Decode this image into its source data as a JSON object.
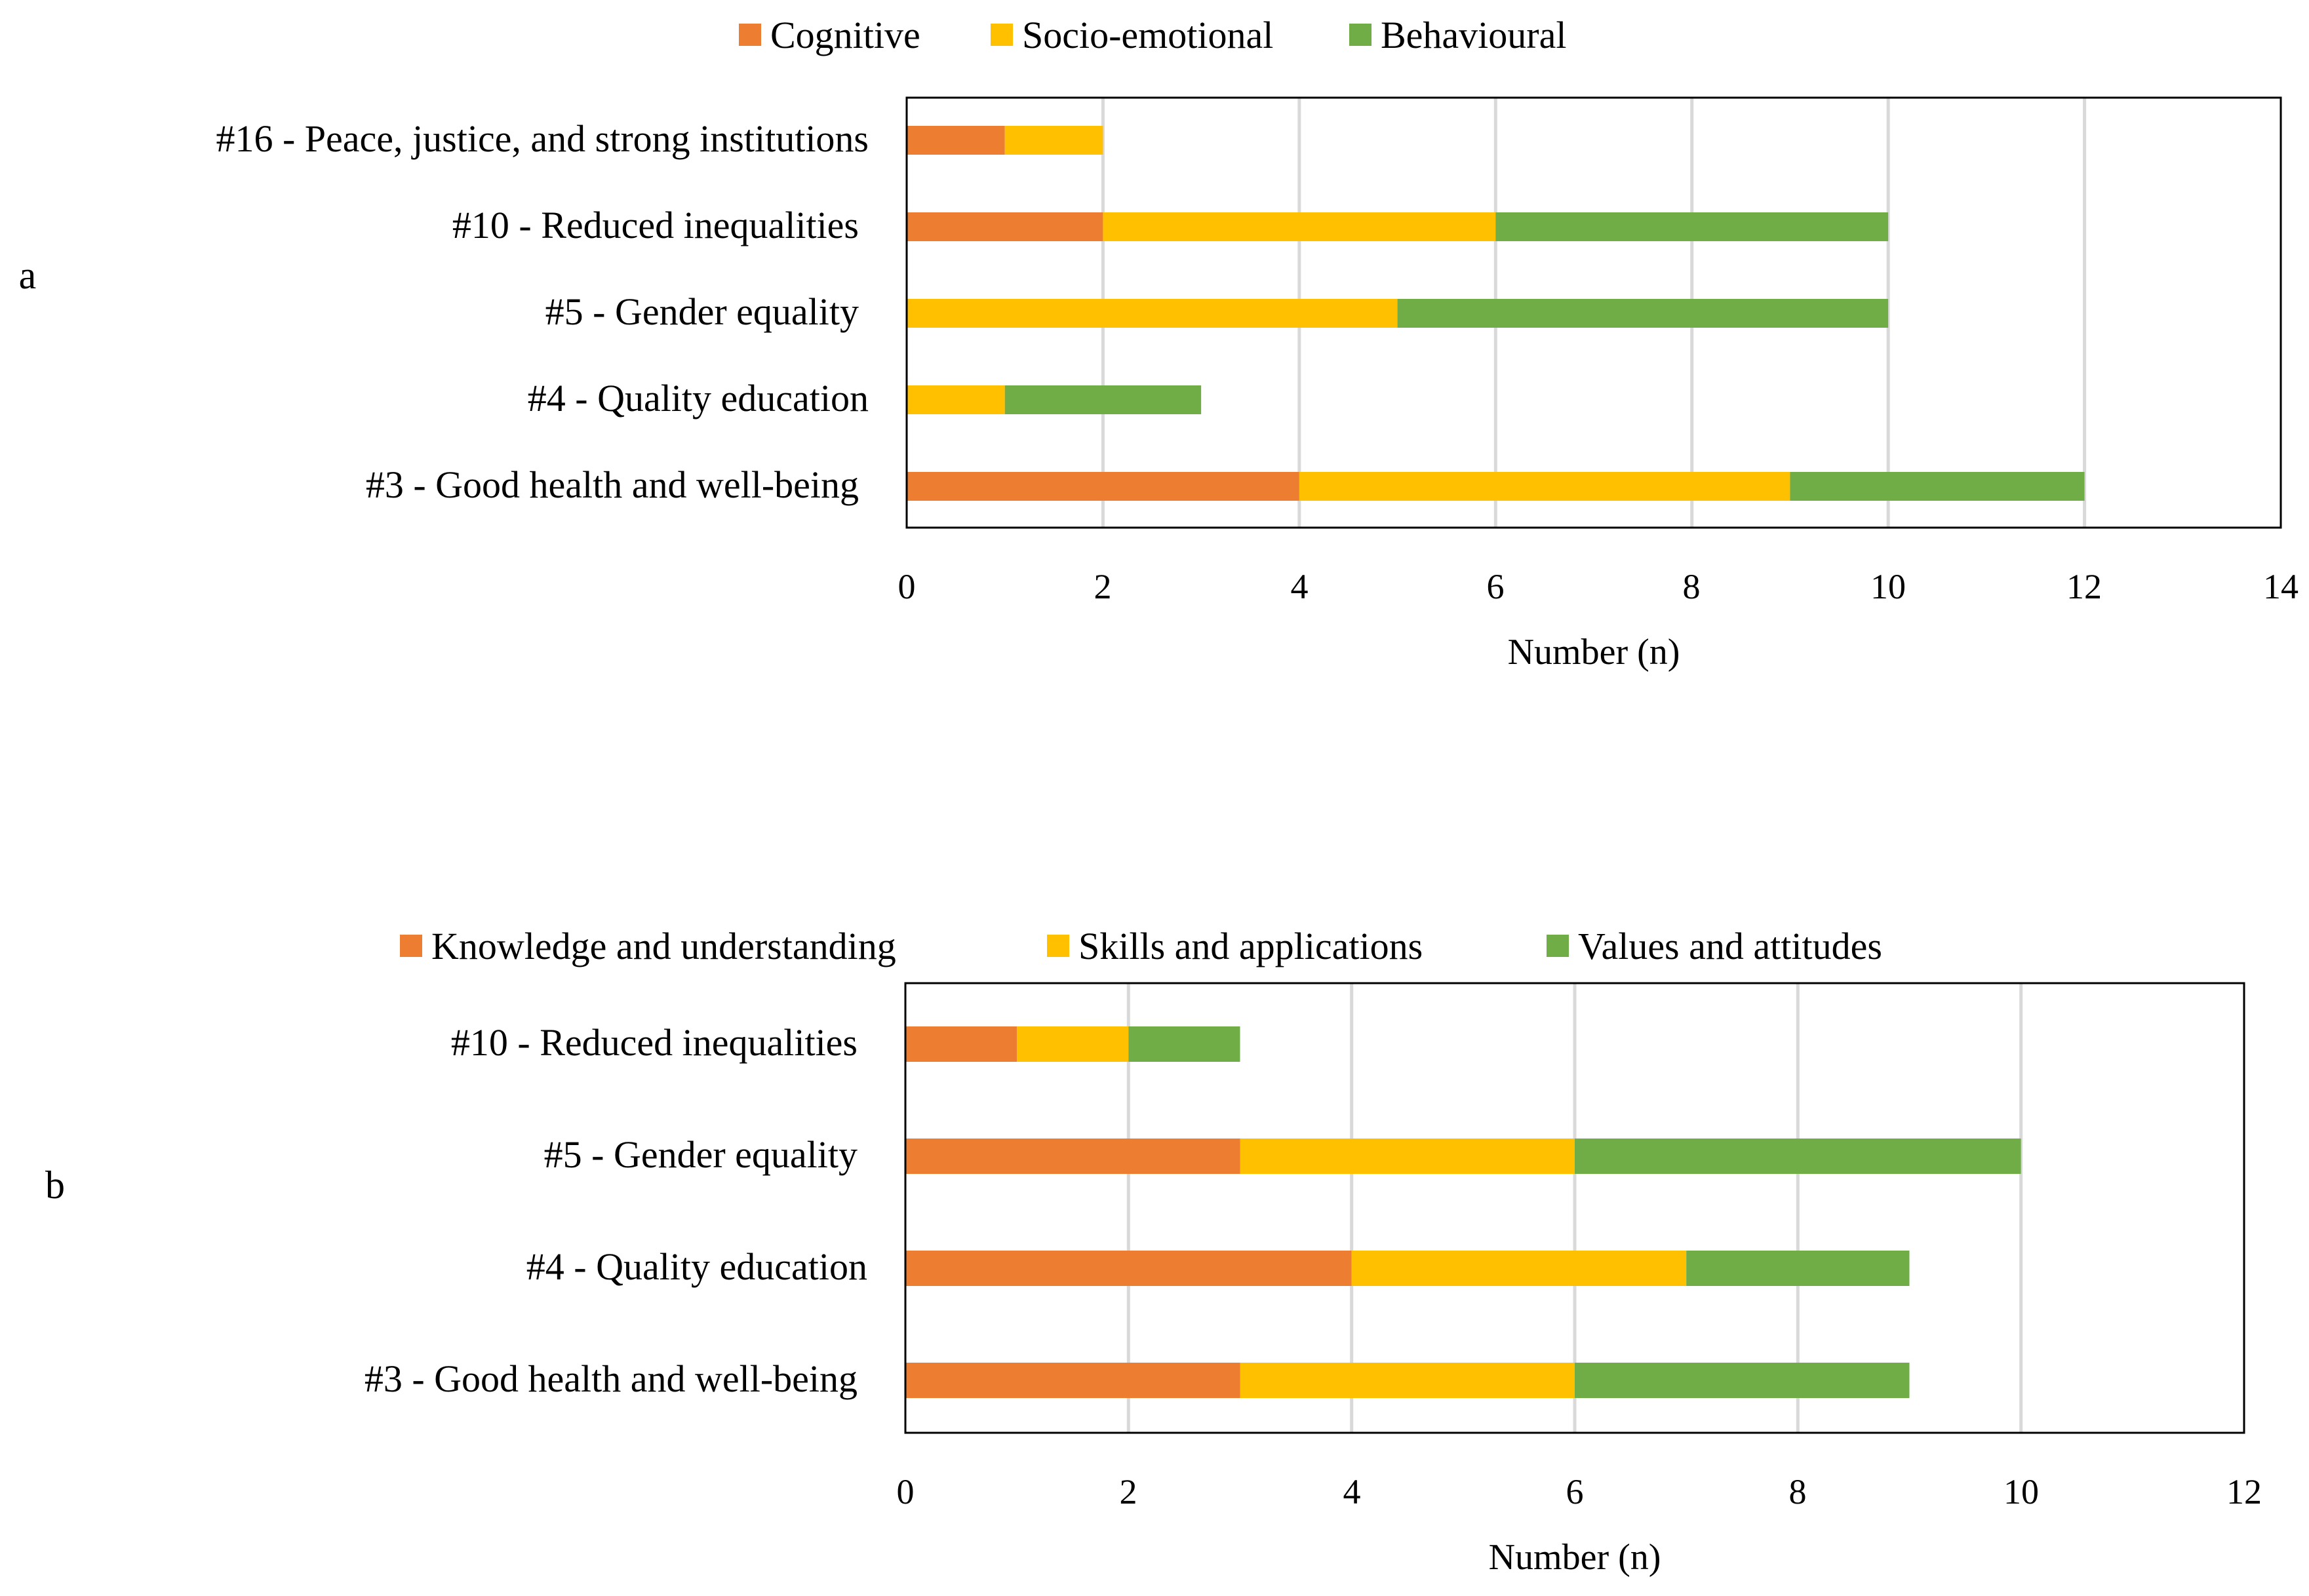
{
  "chart_data": [
    {
      "type": "bar",
      "orientation": "horizontal",
      "stacked": true,
      "panel_label": "a",
      "categories": [
        "#16 - Peace, justice, and strong institutions",
        "#10 - Reduced inequalities",
        "#5 - Gender equality",
        "#4 - Quality education",
        "#3 - Good health and well-being"
      ],
      "series": [
        {
          "name": "Cognitive",
          "color": "#ED7D31",
          "values": [
            1,
            2,
            0,
            0,
            4
          ]
        },
        {
          "name": "Socio-emotional",
          "color": "#FFC000",
          "values": [
            1,
            4,
            5,
            1,
            5
          ]
        },
        {
          "name": "Behavioural",
          "color": "#70AD47",
          "values": [
            0,
            4,
            5,
            2,
            3
          ]
        }
      ],
      "xlabel": "Number (n)",
      "ylabel": "",
      "xlim": [
        0,
        14
      ],
      "xticks": [
        "0",
        "2",
        "4",
        "6",
        "8",
        "10",
        "12",
        "14"
      ],
      "grid": true,
      "legend_position": "top"
    },
    {
      "type": "bar",
      "orientation": "horizontal",
      "stacked": true,
      "panel_label": "b",
      "categories": [
        "#10 - Reduced inequalities",
        "#5 - Gender equality",
        "#4 - Quality education",
        "#3 - Good health and well-being"
      ],
      "series": [
        {
          "name": "Knowledge and understanding",
          "color": "#ED7D31",
          "values": [
            1,
            3,
            4,
            3
          ]
        },
        {
          "name": "Skills and applications",
          "color": "#FFC000",
          "values": [
            1,
            3,
            3,
            3
          ]
        },
        {
          "name": "Values and attitudes",
          "color": "#70AD47",
          "values": [
            1,
            4,
            2,
            3
          ]
        }
      ],
      "xlabel": "Number (n)",
      "ylabel": "",
      "xlim": [
        0,
        12
      ],
      "xticks": [
        "0",
        "2",
        "4",
        "6",
        "8",
        "10",
        "12"
      ],
      "grid": true,
      "legend_position": "top"
    }
  ]
}
